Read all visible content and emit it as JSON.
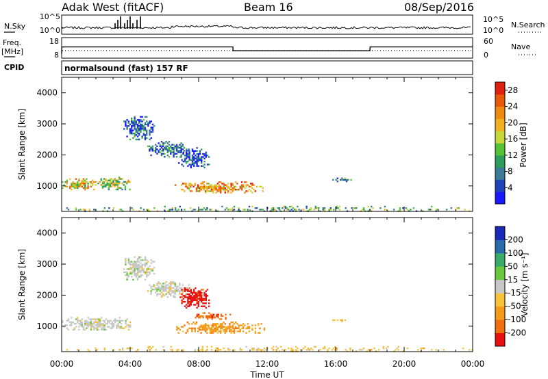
{
  "header": {
    "station": "Adak West (fitACF)",
    "beam": "Beam 16",
    "date": "08/Sep/2016"
  },
  "status_panels": {
    "nsky_label": "N.Sky",
    "nsearch_label": "N.Search",
    "noise_ticks": [
      "10^5",
      "10^0"
    ],
    "freq_label_1": "Freq.",
    "freq_label_2": "[MHz]",
    "freq_ticks": [
      "18",
      "8"
    ],
    "nave_label": "Nave",
    "nave_ticks": [
      "60",
      "0"
    ],
    "cpid_label": "CPID",
    "cpid_text": "normalsound (fast) 157 RF"
  },
  "colors": {
    "power": [
      "#1a1aff",
      "#2244bb",
      "#3d7a9a",
      "#2e9c5a",
      "#55c238",
      "#c8d63a",
      "#f0b020",
      "#f08a10",
      "#e85a0a",
      "#e02010"
    ],
    "velocity": [
      "#e81010",
      "#f07010",
      "#f49a1a",
      "#f8c23a",
      "#c8c8c8",
      "#6ac83c",
      "#3aaa6a",
      "#2a6aaa",
      "#1a2ab8"
    ]
  },
  "chart_data": [
    {
      "type": "line",
      "name": "noise",
      "series": [
        {
          "name": "N.Sky",
          "style": "solid"
        },
        {
          "name": "N.Search",
          "style": "dotted"
        }
      ],
      "ylim_labels": [
        "10^0",
        "10^5"
      ]
    },
    {
      "type": "line",
      "name": "frequency-nave",
      "xlim": [
        0,
        24
      ],
      "left_ylim": [
        8,
        18
      ],
      "right_ylim": [
        0,
        60
      ],
      "series": [
        {
          "name": "Freq.",
          "style": "solid",
          "x": [
            0,
            0.01,
            10,
            10.01,
            18,
            18.01,
            24
          ],
          "y": [
            10,
            13.5,
            13.5,
            11.5,
            11.5,
            13.5,
            13.5
          ]
        },
        {
          "name": "Nave",
          "style": "dotted"
        }
      ]
    },
    {
      "type": "heatmap",
      "name": "power",
      "xlabel": "",
      "ylabel": "Slant Range [km]",
      "xlim": [
        0,
        24
      ],
      "ylim": [
        180,
        4500
      ],
      "yticks": [
        1000,
        2000,
        3000,
        4000
      ],
      "colorbar_label": "Power [dB]",
      "colorbar_ticks": [
        4,
        8,
        12,
        16,
        20,
        24,
        28
      ],
      "colorbar_range": [
        0,
        30
      ],
      "regions": [
        {
          "x": [
            0.0,
            2.0
          ],
          "y": [
            900,
            1250
          ],
          "level": 0.62
        },
        {
          "x": [
            2.0,
            4.0
          ],
          "y": [
            880,
            1300
          ],
          "level": 0.5
        },
        {
          "x": [
            6.6,
            11.8
          ],
          "y": [
            780,
            1150
          ],
          "level": 0.72
        },
        {
          "x": [
            3.6,
            5.4
          ],
          "y": [
            2500,
            3250
          ],
          "level": 0.2
        },
        {
          "x": [
            5.0,
            7.4
          ],
          "y": [
            1950,
            2450
          ],
          "level": 0.25
        },
        {
          "x": [
            6.8,
            8.6
          ],
          "y": [
            1600,
            2250
          ],
          "level": 0.15
        },
        {
          "x": [
            15.8,
            16.9
          ],
          "y": [
            1170,
            1270
          ],
          "level": 0.3
        },
        {
          "x": [
            0.0,
            24.0
          ],
          "y": [
            180,
            360
          ],
          "level": 0.4
        }
      ]
    },
    {
      "type": "heatmap",
      "name": "velocity",
      "xlabel": "Time UT",
      "ylabel": "Slant Range [km]",
      "xlim": [
        0,
        24
      ],
      "ylim": [
        180,
        4500
      ],
      "xticks": [
        "00:00",
        "04:00",
        "08:00",
        "12:00",
        "16:00",
        "20:00",
        "00:00"
      ],
      "yticks": [
        1000,
        2000,
        3000,
        4000
      ],
      "colorbar_label": "Velocity [m s⁻¹]",
      "colorbar_ticks": [
        "-200",
        "-100",
        "-50",
        "-15",
        "15",
        "50",
        "100",
        "200"
      ],
      "regions": [
        {
          "x": [
            0.0,
            4.0
          ],
          "y": [
            880,
            1300
          ],
          "level": 4
        },
        {
          "x": [
            6.6,
            11.8
          ],
          "y": [
            780,
            1150
          ],
          "level": 2
        },
        {
          "x": [
            7.6,
            9.8
          ],
          "y": [
            1250,
            1450
          ],
          "level": 1
        },
        {
          "x": [
            3.6,
            5.4
          ],
          "y": [
            2500,
            3250
          ],
          "level": 4
        },
        {
          "x": [
            5.0,
            7.4
          ],
          "y": [
            1950,
            2450
          ],
          "level": 4
        },
        {
          "x": [
            6.8,
            8.6
          ],
          "y": [
            1600,
            2250
          ],
          "level": 0
        },
        {
          "x": [
            15.8,
            16.9
          ],
          "y": [
            1170,
            1270
          ],
          "level": 3
        },
        {
          "x": [
            0.0,
            24.0
          ],
          "y": [
            180,
            360
          ],
          "level": 3
        }
      ]
    }
  ]
}
